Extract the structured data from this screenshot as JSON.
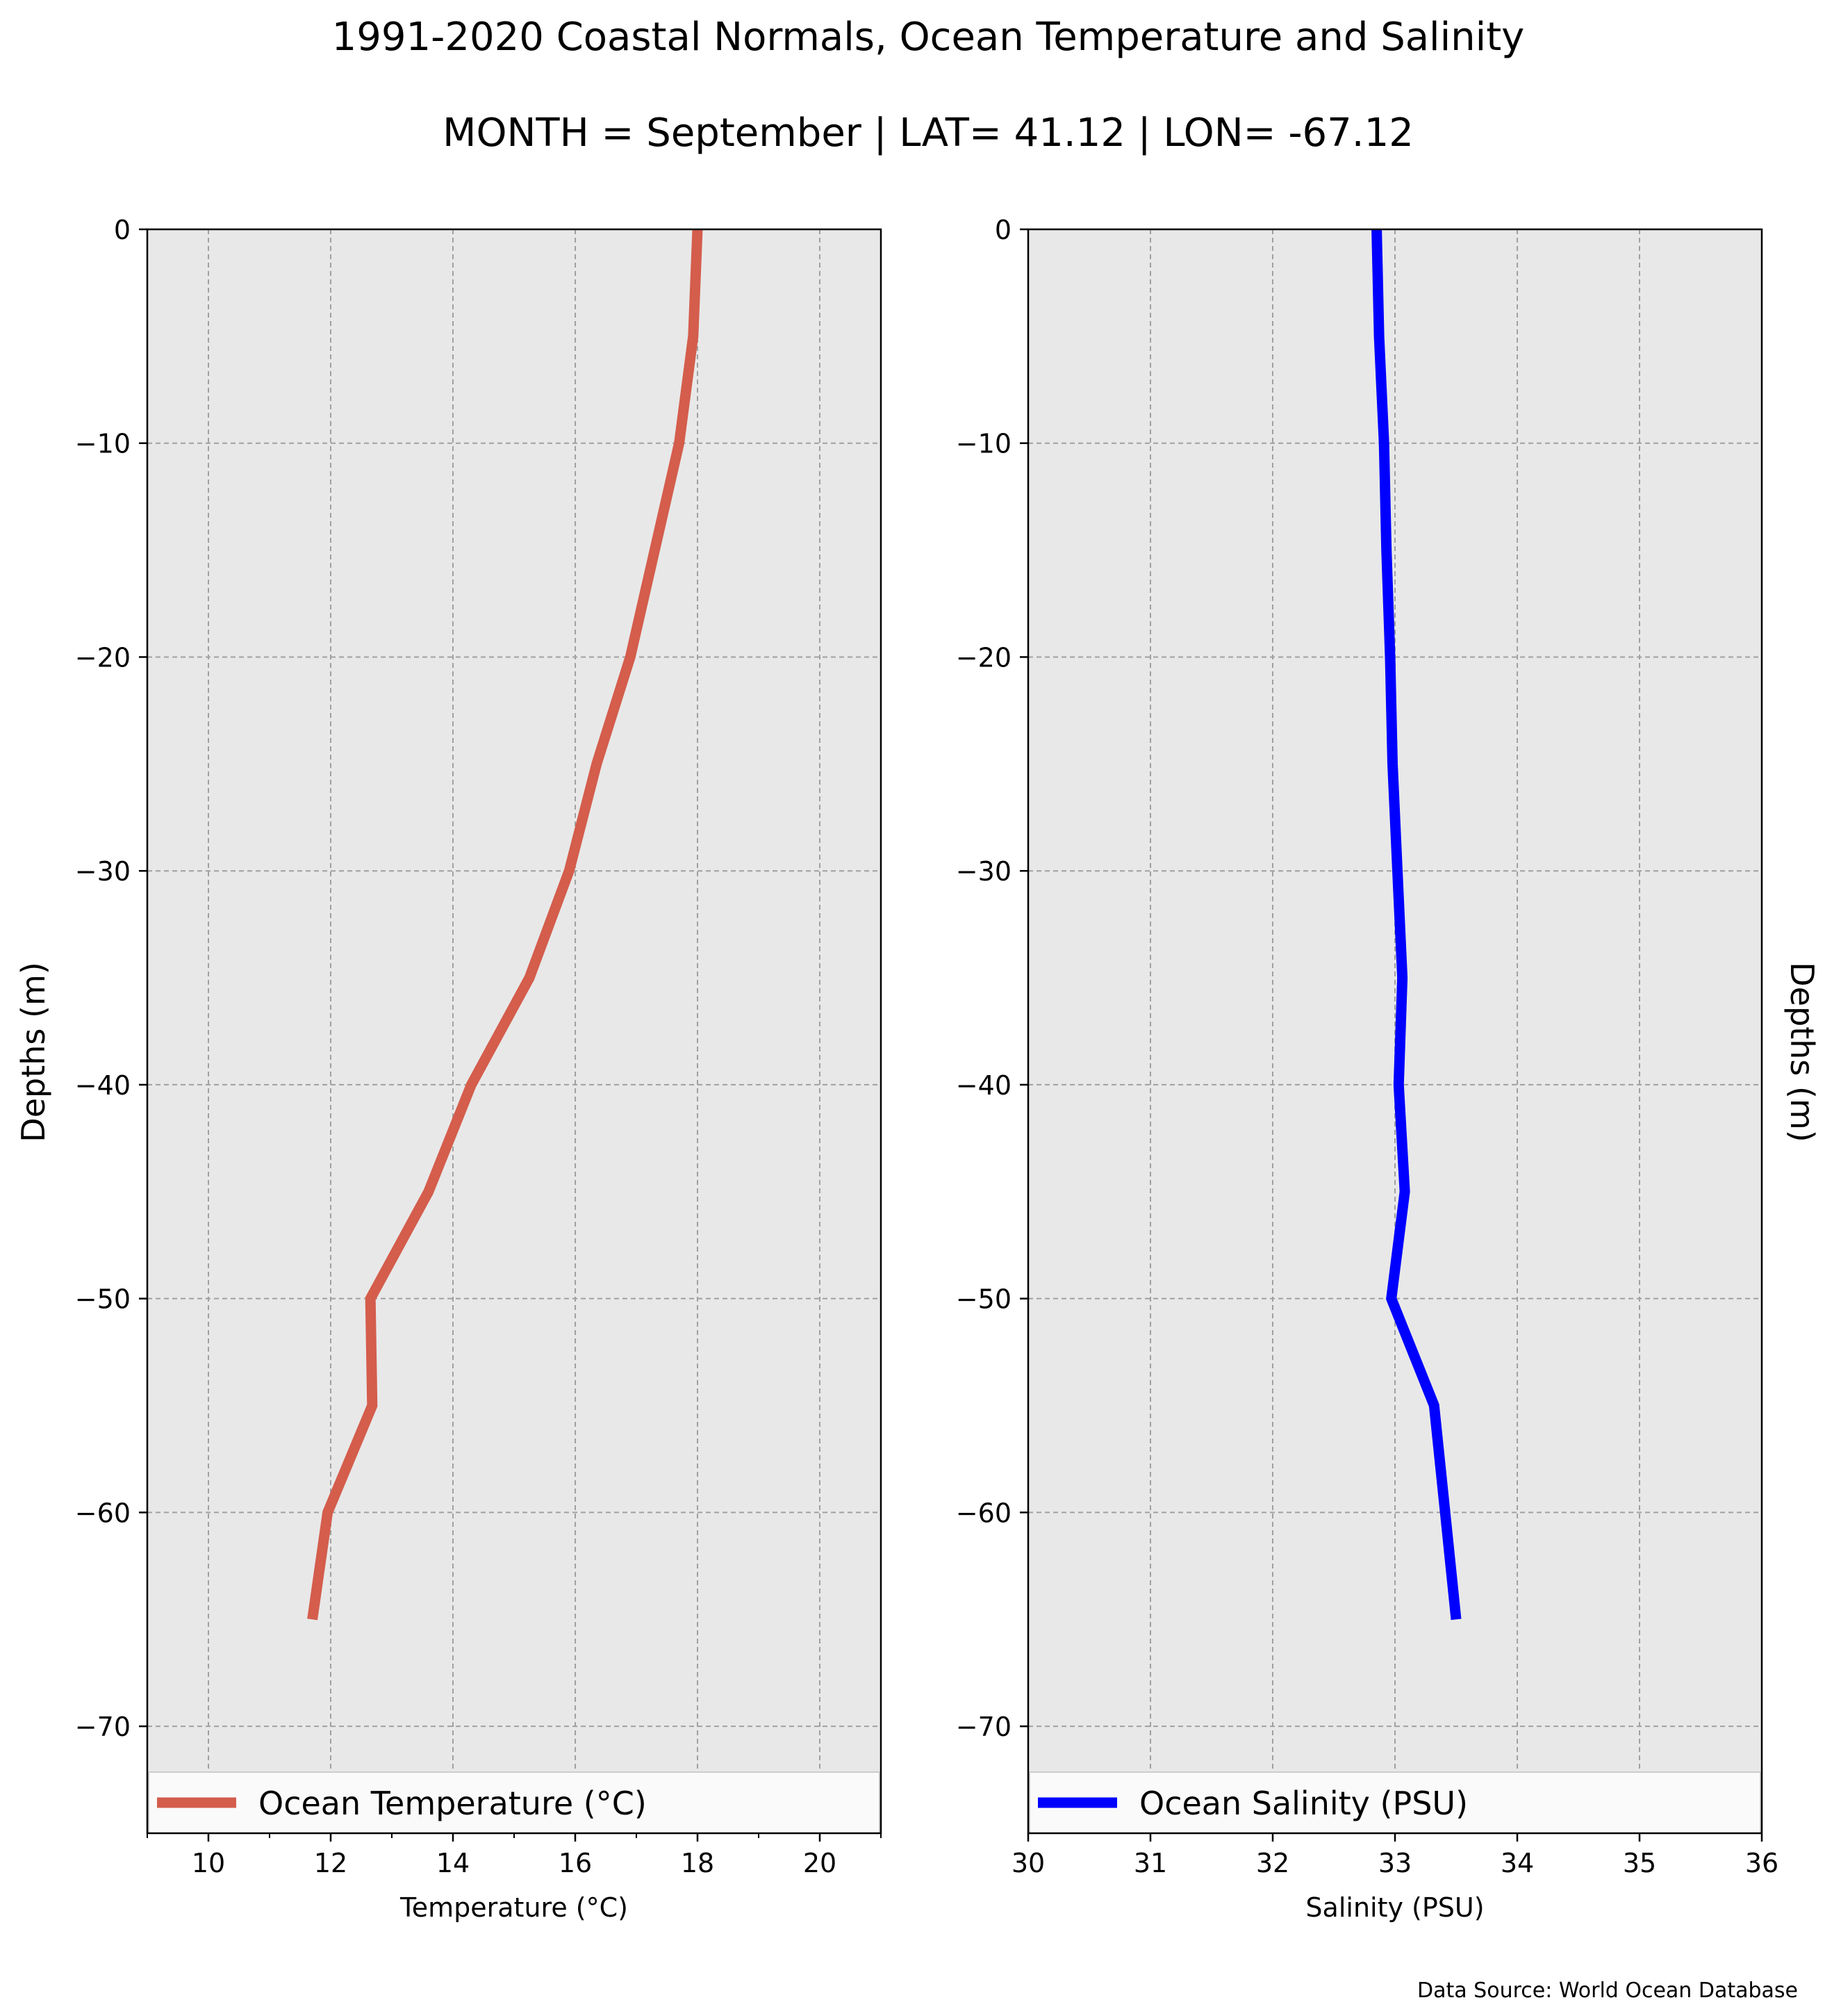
{
  "title": "1991-2020 Coastal Normals, Ocean Temperature and Salinity",
  "subtitle": "MONTH = September | LAT= 41.12 | LON= -67.12",
  "source_note": "Data Source: World Ocean Database",
  "colors": {
    "plot_background": "#e8e8e8",
    "grid": "#a0a0a0",
    "temperature_line": "#d45d4c",
    "salinity_line": "#0000ff"
  },
  "chart_data": [
    {
      "type": "line",
      "xlabel": "Temperature ($^\\circ$C)",
      "xlabel_display": "Temperature (°C)",
      "ylabel": "Depths (m)",
      "ylabel_side": "left",
      "xlim": [
        9,
        21
      ],
      "ylim": [
        -75,
        0
      ],
      "xticks": [
        10,
        12,
        14,
        16,
        18,
        20
      ],
      "xticks_minor": [
        9,
        11,
        13,
        15,
        17,
        19,
        21
      ],
      "yticks": [
        0,
        -10,
        -20,
        -30,
        -40,
        -50,
        -60,
        -70
      ],
      "ytick_labels": [
        "0",
        "−10",
        "−20",
        "−30",
        "−40",
        "−50",
        "−60",
        "−70"
      ],
      "xtick_labels": [
        "10",
        "12",
        "14",
        "16",
        "18",
        "20"
      ],
      "grid": true,
      "legend_position": "bottom",
      "series": [
        {
          "name": "Ocean Temperature (°C)",
          "color": "#d45d4c",
          "points": [
            {
              "x": 18.0,
              "y": 0
            },
            {
              "x": 17.93,
              "y": -5
            },
            {
              "x": 17.7,
              "y": -10
            },
            {
              "x": 17.3,
              "y": -15
            },
            {
              "x": 16.9,
              "y": -20
            },
            {
              "x": 16.35,
              "y": -25
            },
            {
              "x": 15.9,
              "y": -30
            },
            {
              "x": 15.25,
              "y": -35
            },
            {
              "x": 14.3,
              "y": -40
            },
            {
              "x": 13.6,
              "y": -45
            },
            {
              "x": 12.65,
              "y": -50
            },
            {
              "x": 12.68,
              "y": -55
            },
            {
              "x": 11.95,
              "y": -60
            },
            {
              "x": 11.7,
              "y": -65
            }
          ]
        }
      ]
    },
    {
      "type": "line",
      "xlabel": "Salinity (PSU)",
      "xlabel_display": "Salinity (PSU)",
      "ylabel": "Depths (m)",
      "ylabel_side": "right",
      "xlim": [
        30,
        36
      ],
      "ylim": [
        -75,
        0
      ],
      "xticks": [
        30,
        31,
        32,
        33,
        34,
        35,
        36
      ],
      "xtick_labels": [
        "30",
        "31",
        "32",
        "33",
        "34",
        "35",
        "36"
      ],
      "yticks": [
        0,
        -10,
        -20,
        -30,
        -40,
        -50,
        -60,
        -70
      ],
      "ytick_labels": [
        "0",
        "−10",
        "−20",
        "−30",
        "−40",
        "−50",
        "−60",
        "−70"
      ],
      "grid": true,
      "legend_position": "bottom",
      "series": [
        {
          "name": "Ocean Salinity (PSU)",
          "color": "#0000ff",
          "points": [
            {
              "x": 32.85,
              "y": 0
            },
            {
              "x": 32.87,
              "y": -5
            },
            {
              "x": 32.91,
              "y": -10
            },
            {
              "x": 32.93,
              "y": -15
            },
            {
              "x": 32.96,
              "y": -20
            },
            {
              "x": 32.98,
              "y": -25
            },
            {
              "x": 33.02,
              "y": -30
            },
            {
              "x": 33.06,
              "y": -35
            },
            {
              "x": 33.03,
              "y": -40
            },
            {
              "x": 33.08,
              "y": -45
            },
            {
              "x": 32.97,
              "y": -50
            },
            {
              "x": 33.32,
              "y": -55
            },
            {
              "x": 33.41,
              "y": -60
            },
            {
              "x": 33.5,
              "y": -65
            }
          ]
        }
      ]
    }
  ]
}
